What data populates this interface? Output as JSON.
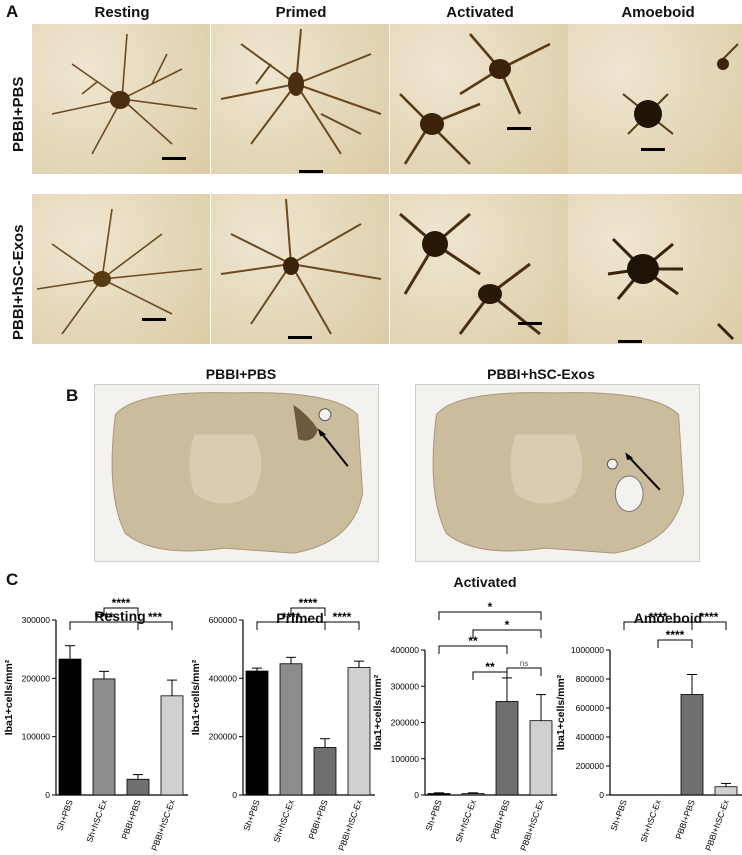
{
  "panel_a": {
    "letter": "A",
    "columns": [
      "Resting",
      "Primed",
      "Activated",
      "Amoeboid"
    ],
    "rows": [
      "PBBI+PBS",
      "PBBI+hSC-Exos"
    ]
  },
  "panel_b": {
    "letter": "B",
    "titles": [
      "PBBI+PBS",
      "PBBI+hSC-Exos"
    ]
  },
  "panel_c": {
    "letter": "C",
    "ylabel": "Iba1+cells/mm²"
  },
  "chart_data": [
    {
      "type": "bar",
      "title": "Resting",
      "categories": [
        "Sh+PBS",
        "Sh+hSC-Ex",
        "PBBI+PBS",
        "PBBI+hSC-Ex"
      ],
      "values": [
        233000,
        199000,
        27000,
        170000
      ],
      "errors": [
        23000,
        13000,
        8000,
        27000
      ],
      "ylabel": "Iba1+cells/mm²",
      "ylim": [
        0,
        300000
      ],
      "yticks": [
        "0",
        "100000",
        "200000",
        "300000"
      ],
      "colors": [
        "#000000",
        "#8c8c8c",
        "#6f6f6f",
        "#d0d0d0"
      ],
      "brackets": [
        {
          "from": 0,
          "to": 2,
          "label": "****"
        },
        {
          "from": 1,
          "to": 2,
          "label": "****"
        },
        {
          "from": 2,
          "to": 3,
          "label": "***"
        }
      ]
    },
    {
      "type": "bar",
      "title": "Primed",
      "categories": [
        "Sh+PBS",
        "Sh+hSC-Ex",
        "PBBI+PBS",
        "PBBI+hSC-Ex"
      ],
      "values": [
        425000,
        450000,
        163000,
        437000
      ],
      "errors": [
        10000,
        22000,
        30000,
        22000
      ],
      "ylabel": "Iba1+cells/mm²",
      "ylim": [
        0,
        600000
      ],
      "yticks": [
        "0",
        "200000",
        "400000",
        "600000"
      ],
      "colors": [
        "#000000",
        "#8c8c8c",
        "#6f6f6f",
        "#d0d0d0"
      ],
      "brackets": [
        {
          "from": 0,
          "to": 2,
          "label": "****"
        },
        {
          "from": 1,
          "to": 2,
          "label": "****"
        },
        {
          "from": 2,
          "to": 3,
          "label": "****"
        }
      ]
    },
    {
      "type": "bar",
      "title": "Activated",
      "categories": [
        "Sh+PBS",
        "Sh+hSC-Ex",
        "PBBI+PBS",
        "PBBI+hSC-Ex"
      ],
      "values": [
        4000,
        4000,
        258000,
        205000
      ],
      "errors": [
        2000,
        2000,
        65000,
        72000
      ],
      "ylabel": "Iba1+cells/mm²",
      "ylim": [
        0,
        400000
      ],
      "yticks": [
        "0",
        "100000",
        "200000",
        "300000",
        "400000"
      ],
      "colors": [
        "#000000",
        "#8c8c8c",
        "#6f6f6f",
        "#d0d0d0"
      ],
      "brackets": [
        {
          "from": 1,
          "to": 2,
          "label": "**"
        },
        {
          "from": 2,
          "to": 3,
          "label": "ns"
        },
        {
          "from": 0,
          "to": 2,
          "label": "**"
        },
        {
          "from": 1,
          "to": 3,
          "label": "*"
        },
        {
          "from": 0,
          "to": 3,
          "label": "*"
        }
      ]
    },
    {
      "type": "bar",
      "title": "Amoeboid",
      "categories": [
        "Sh+PBS",
        "Sh+hSC-Ex",
        "PBBI+PBS",
        "PBBI+hSC-Ex"
      ],
      "values": [
        0,
        0,
        693000,
        57000
      ],
      "errors": [
        0,
        0,
        138000,
        23000
      ],
      "ylabel": "Iba1+cells/mm²",
      "ylim": [
        0,
        1000000
      ],
      "yticks": [
        "0",
        "200000",
        "400000",
        "600000",
        "800000",
        "1000000"
      ],
      "colors": [
        "#000000",
        "#8c8c8c",
        "#6f6f6f",
        "#d0d0d0"
      ],
      "brackets": [
        {
          "from": 1,
          "to": 2,
          "label": "****"
        },
        {
          "from": 0,
          "to": 2,
          "label": "****"
        },
        {
          "from": 2,
          "to": 3,
          "label": "****"
        }
      ]
    }
  ]
}
